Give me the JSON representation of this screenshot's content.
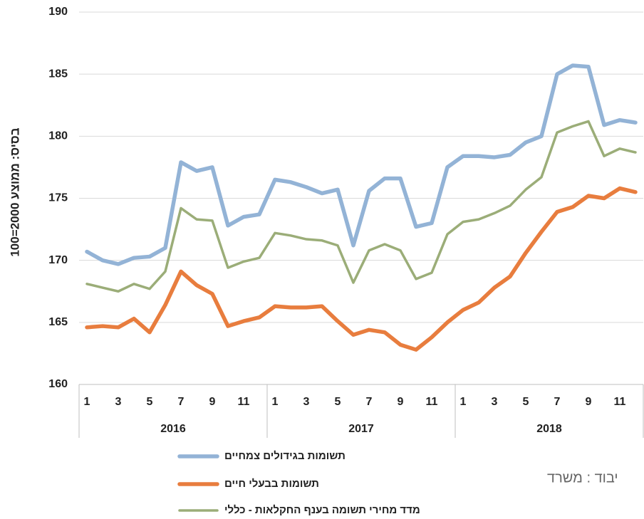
{
  "chart_data": {
    "type": "line",
    "y_label": "בסיס: ממוצע 2000=100",
    "annotation": "יבוד : משרד",
    "categories": [
      "1",
      null,
      "3",
      null,
      "5",
      null,
      "7",
      null,
      "9",
      null,
      "11",
      null,
      "1",
      null,
      "3",
      null,
      "5",
      null,
      "7",
      null,
      "9",
      null,
      "11",
      null,
      "1",
      null,
      "3",
      null,
      "5",
      null,
      "7",
      null,
      "9",
      null,
      "11",
      null
    ],
    "x_groups": [
      "2016",
      "2017",
      "2018"
    ],
    "ylim": [
      160,
      190
    ],
    "yticks": [
      160,
      165,
      170,
      175,
      180,
      185,
      190
    ],
    "grid": true,
    "legend": "bottom",
    "series": [
      {
        "name": "תשומות בגידולים צמחיים",
        "color": "#93b3d6",
        "values": [
          170.7,
          170.0,
          169.7,
          170.2,
          170.3,
          171.0,
          177.9,
          177.2,
          177.5,
          172.8,
          173.5,
          173.7,
          176.5,
          176.3,
          175.9,
          175.4,
          175.7,
          171.2,
          175.6,
          176.6,
          176.6,
          172.7,
          173.0,
          177.5,
          178.4,
          178.4,
          178.3,
          178.5,
          179.5,
          180.0,
          185.0,
          185.7,
          185.6,
          180.9,
          181.3,
          181.1
        ]
      },
      {
        "name": "תשומות בבעלי חיים",
        "color": "#e87d3e",
        "values": [
          164.6,
          164.7,
          164.6,
          165.3,
          164.2,
          166.4,
          169.1,
          168.0,
          167.3,
          164.7,
          165.1,
          165.4,
          166.3,
          166.2,
          166.2,
          166.3,
          165.1,
          164.0,
          164.4,
          164.2,
          163.2,
          162.8,
          163.8,
          165.0,
          166.0,
          166.6,
          167.8,
          168.7,
          170.6,
          172.3,
          173.9,
          174.3,
          175.2,
          175.0,
          175.8,
          175.5
        ]
      },
      {
        "name": "מדד מחירי תשומה בענף החקלאות - כללי",
        "color": "#9bad78",
        "values": [
          168.1,
          167.8,
          167.5,
          168.1,
          167.7,
          169.1,
          174.2,
          173.3,
          173.2,
          169.4,
          169.9,
          170.2,
          172.2,
          172.0,
          171.7,
          171.6,
          171.2,
          168.2,
          170.8,
          171.3,
          170.8,
          168.5,
          169.0,
          172.1,
          173.1,
          173.3,
          173.8,
          174.4,
          175.7,
          176.7,
          180.3,
          180.8,
          181.2,
          178.4,
          179.0,
          178.7
        ]
      }
    ]
  }
}
